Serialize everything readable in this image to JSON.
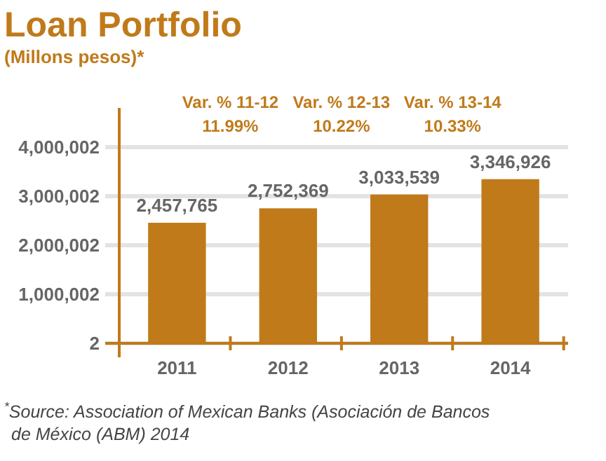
{
  "chart_data": {
    "type": "bar",
    "title": "Loan Portfolio",
    "subtitle": "(Millons pesos)*",
    "categories": [
      "2011",
      "2012",
      "2013",
      "2014"
    ],
    "values": [
      2457765,
      2752369,
      3033539,
      3346926
    ],
    "color": "#c07a1a",
    "value_labels": [
      "2,457,765",
      "2,752,369",
      "3,033,539",
      "3,346,926"
    ],
    "ylim": [
      2,
      4800002
    ],
    "yticks": [
      2,
      {
        "value": 1000002,
        "label": "1,000,002"
      },
      {
        "value": 2000002,
        "label": "2,000,002"
      },
      {
        "value": 3000002,
        "label": "3,000,002"
      },
      {
        "value": 4000002,
        "label": "4,000,002"
      }
    ],
    "grid": "y",
    "annotations": [
      "Var. % 11-12\n11.99%",
      "Var. % 12-13\n10.22%",
      "Var. % 13-14\n10.33%",
      "$^{*}$Source: Association of Mexican Banks (Asociación de Bancos de México (ABM) 2014"
    ]
  }
}
